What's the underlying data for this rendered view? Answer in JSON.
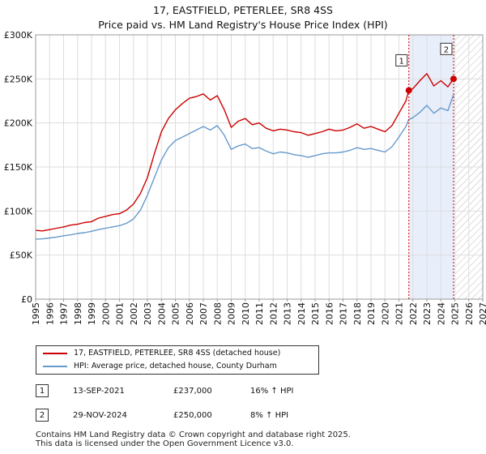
{
  "chart_data": {
    "type": "line",
    "title": "17, EASTFIELD, PETERLEE, SR8 4SS",
    "subtitle": "Price paid vs. HM Land Registry's House Price Index (HPI)",
    "xlabel": "",
    "ylabel": "",
    "xlim": [
      1995,
      2027
    ],
    "ylim": [
      0,
      300000
    ],
    "y_ticks": [
      0,
      50000,
      100000,
      150000,
      200000,
      250000,
      300000
    ],
    "y_tick_labels": [
      "£0",
      "£50K",
      "£100K",
      "£150K",
      "£200K",
      "£250K",
      "£300K"
    ],
    "x_ticks": [
      1995,
      1996,
      1997,
      1998,
      1999,
      2000,
      2001,
      2002,
      2003,
      2004,
      2005,
      2006,
      2007,
      2008,
      2009,
      2010,
      2011,
      2012,
      2013,
      2014,
      2015,
      2016,
      2017,
      2018,
      2019,
      2020,
      2021,
      2022,
      2023,
      2024,
      2025,
      2026,
      2027
    ],
    "grid": true,
    "shaded_period": [
      2021.71,
      2024.91
    ],
    "forecast_hatch_from": 2025.0,
    "series": [
      {
        "name": "17, EASTFIELD, PETERLEE, SR8 4SS (detached house)",
        "color": "#cc0000",
        "x": [
          1995.0,
          1995.5,
          1996.0,
          1996.5,
          1997.0,
          1997.5,
          1998.0,
          1998.5,
          1999.0,
          1999.5,
          2000.0,
          2000.5,
          2001.0,
          2001.5,
          2002.0,
          2002.5,
          2003.0,
          2003.5,
          2004.0,
          2004.5,
          2005.0,
          2005.5,
          2006.0,
          2006.5,
          2007.0,
          2007.5,
          2008.0,
          2008.5,
          2009.0,
          2009.5,
          2010.0,
          2010.5,
          2011.0,
          2011.5,
          2012.0,
          2012.5,
          2013.0,
          2013.5,
          2014.0,
          2014.5,
          2015.0,
          2015.5,
          2016.0,
          2016.5,
          2017.0,
          2017.5,
          2018.0,
          2018.5,
          2019.0,
          2019.5,
          2020.0,
          2020.5,
          2021.0,
          2021.5,
          2021.71,
          2022.0,
          2022.5,
          2023.0,
          2023.5,
          2024.0,
          2024.5,
          2024.91
        ],
        "y": [
          78000,
          77500,
          79000,
          80500,
          82000,
          84000,
          85000,
          87000,
          88000,
          92000,
          94000,
          96000,
          97000,
          101000,
          108000,
          120000,
          138000,
          165000,
          190000,
          205000,
          215000,
          222000,
          228000,
          230000,
          233000,
          226000,
          231000,
          215000,
          195000,
          202000,
          205000,
          198000,
          200000,
          194000,
          191000,
          193000,
          192000,
          190000,
          189000,
          186000,
          188000,
          190000,
          193000,
          191000,
          192000,
          195000,
          199000,
          194000,
          196000,
          193000,
          190000,
          197000,
          211000,
          225000,
          237000,
          239000,
          248000,
          256000,
          242000,
          248000,
          241000,
          250000
        ]
      },
      {
        "name": "HPI: Average price, detached house, County Durham",
        "color": "#6699cc",
        "x": [
          1995.0,
          1995.5,
          1996.0,
          1996.5,
          1997.0,
          1997.5,
          1998.0,
          1998.5,
          1999.0,
          1999.5,
          2000.0,
          2000.5,
          2001.0,
          2001.5,
          2002.0,
          2002.5,
          2003.0,
          2003.5,
          2004.0,
          2004.5,
          2005.0,
          2005.5,
          2006.0,
          2006.5,
          2007.0,
          2007.5,
          2008.0,
          2008.5,
          2009.0,
          2009.5,
          2010.0,
          2010.5,
          2011.0,
          2011.5,
          2012.0,
          2012.5,
          2013.0,
          2013.5,
          2014.0,
          2014.5,
          2015.0,
          2015.5,
          2016.0,
          2016.5,
          2017.0,
          2017.5,
          2018.0,
          2018.5,
          2019.0,
          2019.5,
          2020.0,
          2020.5,
          2021.0,
          2021.5,
          2021.71,
          2022.0,
          2022.5,
          2023.0,
          2023.5,
          2024.0,
          2024.5,
          2024.91
        ],
        "y": [
          68000,
          68500,
          69500,
          70500,
          72000,
          73000,
          74500,
          75500,
          77000,
          79000,
          80500,
          82000,
          83500,
          86000,
          91000,
          101000,
          118000,
          138000,
          158000,
          172000,
          180000,
          184000,
          188000,
          192000,
          196000,
          192000,
          197000,
          186000,
          170000,
          174000,
          176000,
          171000,
          172000,
          168000,
          165000,
          167000,
          166000,
          164000,
          163000,
          161000,
          163000,
          165000,
          166000,
          166000,
          167000,
          169000,
          172000,
          170000,
          171000,
          169000,
          167000,
          173000,
          184000,
          196000,
          204000,
          206000,
          212000,
          220000,
          211000,
          217000,
          214000,
          232000
        ]
      }
    ],
    "annotations": [
      {
        "label": "1",
        "x": 2021.71,
        "y": 237000
      },
      {
        "label": "2",
        "x": 2024.91,
        "y": 250000
      }
    ]
  },
  "legend": {
    "entries": [
      {
        "label": "17, EASTFIELD, PETERLEE, SR8 4SS (detached house)",
        "color": "#cc0000"
      },
      {
        "label": "HPI: Average price, detached house, County Durham",
        "color": "#6699cc"
      }
    ]
  },
  "transactions": [
    {
      "num": "1",
      "date": "13-SEP-2021",
      "price": "£237,000",
      "hpi": "16% ↑ HPI"
    },
    {
      "num": "2",
      "date": "29-NOV-2024",
      "price": "£250,000",
      "hpi": "8% ↑ HPI"
    }
  ],
  "footer": {
    "line1": "Contains HM Land Registry data © Crown copyright and database right 2025.",
    "line2": "This data is licensed under the Open Government Licence v3.0."
  }
}
